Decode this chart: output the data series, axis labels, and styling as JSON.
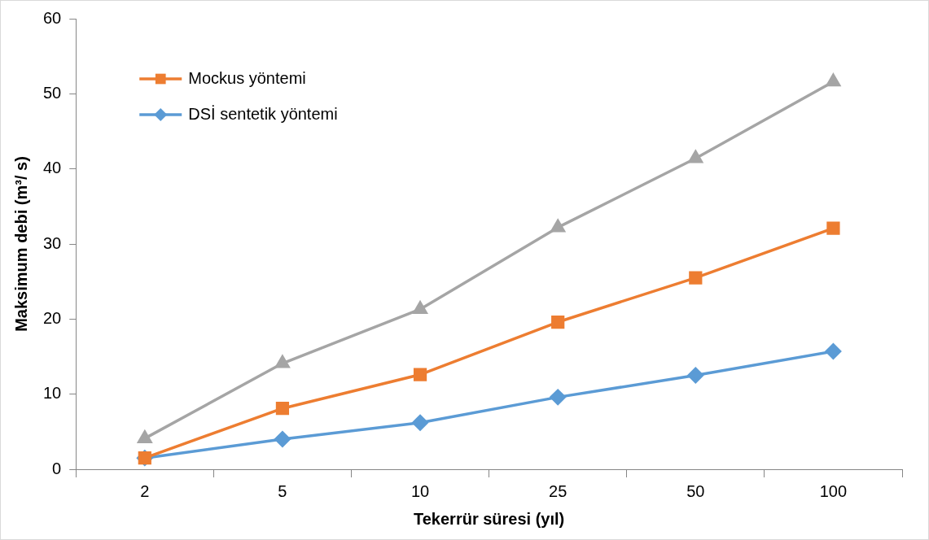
{
  "chart_data": {
    "type": "line",
    "xlabel": "Tekerrür süresi (yıl)",
    "ylabel": "Maksimum debi (m³/ s)",
    "categories": [
      "2",
      "5",
      "10",
      "25",
      "50",
      "100"
    ],
    "series": [
      {
        "color": "#a5a5a5",
        "marker": "triangle",
        "values": [
          4.1,
          14.1,
          21.3,
          32.2,
          41.4,
          51.6
        ]
      },
      {
        "name": "Mockus yöntemi",
        "color": "#ed7d31",
        "marker": "square",
        "values": [
          1.5,
          8.1,
          12.6,
          19.6,
          25.5,
          32.1
        ]
      },
      {
        "name": "DSİ sentetik yöntemi",
        "color": "#5b9bd5",
        "marker": "diamond",
        "values": [
          1.5,
          4.0,
          6.2,
          9.6,
          12.5,
          15.7
        ]
      }
    ],
    "ylim": [
      0,
      60
    ],
    "yticks": [
      0,
      10,
      20,
      30,
      40,
      50,
      60
    ],
    "grid": false,
    "legend": "top left"
  }
}
